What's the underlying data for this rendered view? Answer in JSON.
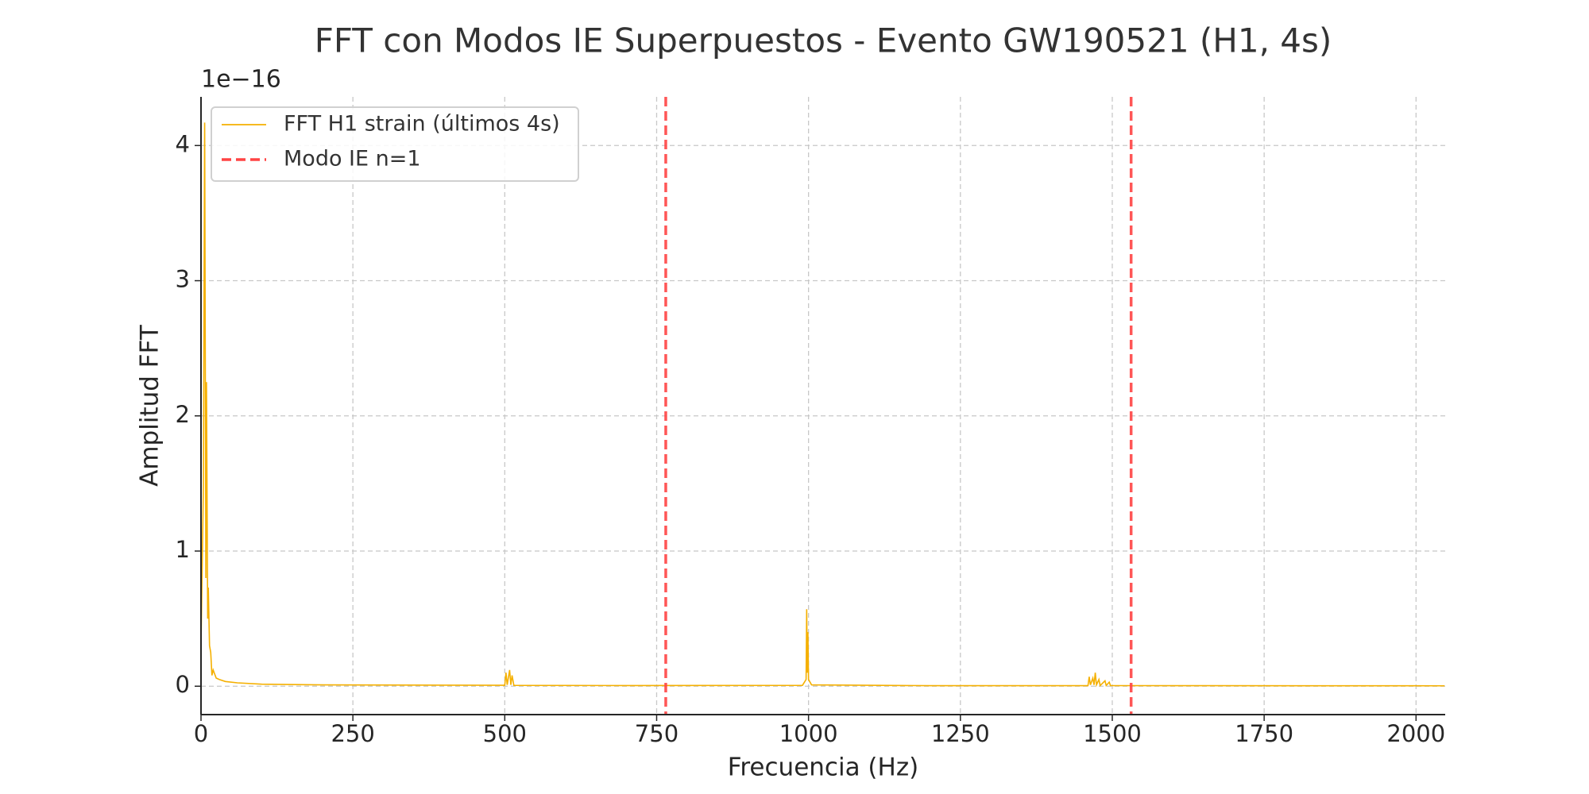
{
  "chart_data": {
    "type": "line",
    "title": "FFT con Modos IE Superpuestos - Evento GW190521 (H1, 4s)",
    "x_label": "Frecuencia (Hz)",
    "y_label": "Amplitud FFT",
    "y_offset_label": "1e−16",
    "x": [
      0,
      4,
      6,
      8,
      9,
      11,
      12,
      14,
      16,
      18,
      20,
      25,
      30,
      40,
      60,
      100,
      200,
      400,
      500,
      502,
      504,
      508,
      510,
      512,
      515,
      700,
      990,
      996,
      997,
      998,
      999,
      1000,
      1005,
      1200,
      1460,
      1462,
      1464,
      1468,
      1470,
      1472,
      1474,
      1478,
      1480,
      1488,
      1490,
      1495,
      1497,
      1600,
      2047
    ],
    "series": [
      {
        "name": "FFT H1 strain (últimos 4s)",
        "color": "#f5b000",
        "values": [
          0.3,
          1.5,
          4.17,
          0.8,
          2.25,
          0.5,
          0.73,
          0.3,
          0.25,
          0.08,
          0.12,
          0.06,
          0.05,
          0.035,
          0.025,
          0.015,
          0.01,
          0.008,
          0.007,
          0.1,
          0.01,
          0.12,
          0.01,
          0.08,
          0.006,
          0.005,
          0.006,
          0.05,
          0.57,
          0.1,
          0.4,
          0.05,
          0.01,
          0.004,
          0.004,
          0.07,
          0.01,
          0.06,
          0.01,
          0.1,
          0.01,
          0.05,
          0.005,
          0.04,
          0.005,
          0.03,
          0.005,
          0.004,
          0.003
        ]
      }
    ],
    "vlines": {
      "name": "Modo IE n=1",
      "color": "#ff4444",
      "x": [
        765,
        1531
      ]
    },
    "xlim": [
      0,
      2048
    ],
    "ylim": [
      -0.21,
      4.36
    ],
    "xticks": [
      0,
      250,
      500,
      750,
      1000,
      1250,
      1500,
      1750,
      2000
    ],
    "yticks": [
      0,
      1,
      2,
      3,
      4
    ],
    "grid": true,
    "legend": "upper left"
  }
}
